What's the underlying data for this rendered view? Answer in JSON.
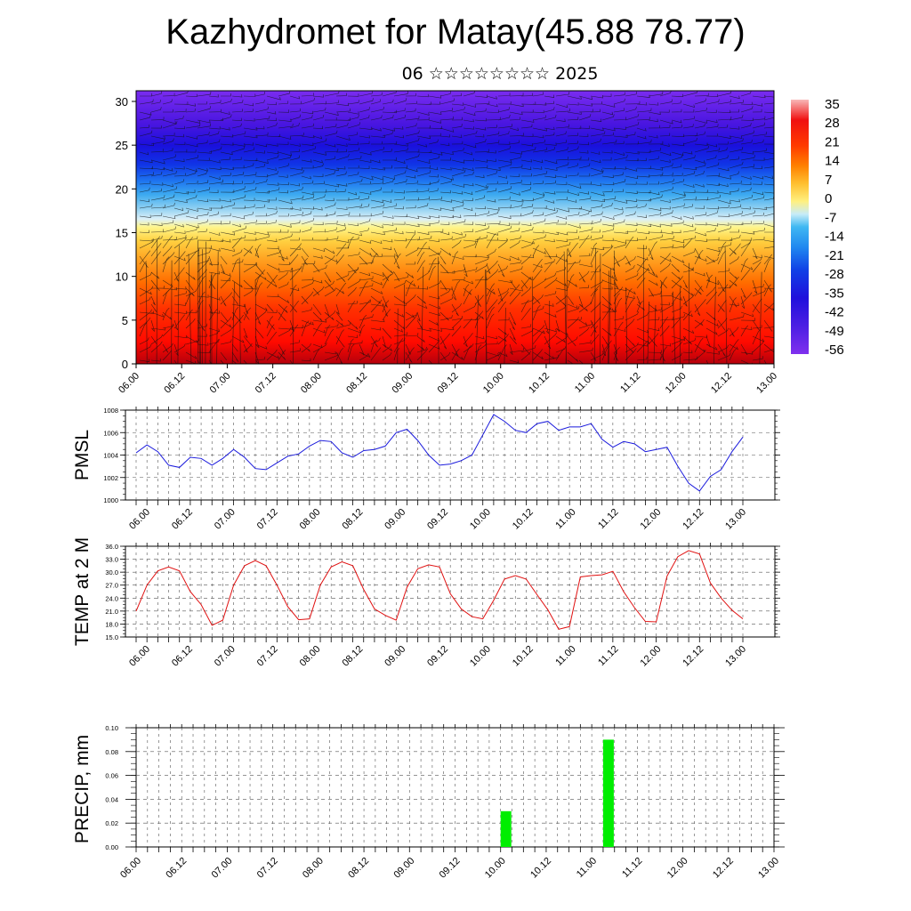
{
  "title": "Kazhydromet for Matay(45.88 78.77)",
  "subtitle": "06 ☆☆☆☆☆☆☆☆ 2025",
  "colors": {
    "pmsl_line": "#1a1adc",
    "temp_line": "#e01010",
    "precip_bar": "#00ee00",
    "grid": "#555555"
  },
  "chart_data": [
    {
      "type": "heatmap",
      "name": "cross-section",
      "ylabel": "",
      "ylim": [
        0,
        30
      ],
      "yticks": [
        "0",
        "5",
        "10",
        "15",
        "20",
        "25",
        "30"
      ],
      "xticks": [
        "06.00",
        "06.12",
        "07.00",
        "07.12",
        "08.00",
        "08.12",
        "09.00",
        "09.12",
        "10.00",
        "10.12",
        "11.00",
        "11.12",
        "12.00",
        "12.12",
        "13.00"
      ],
      "colorbar_labels": [
        "35",
        "28",
        "21",
        "14",
        "7",
        "0",
        "-7",
        "-14",
        "-21",
        "-28",
        "-35",
        "-42",
        "-49",
        "-56"
      ],
      "overlay": "wind barbs",
      "grid": false
    },
    {
      "type": "line",
      "name": "pmsl",
      "ylabel": "PMSL",
      "ylim": [
        1000,
        1008
      ],
      "yticks": [
        "1000",
        "1002",
        "1004",
        "1006",
        "1008"
      ],
      "xticks": [
        "06.00",
        "06.12",
        "07.00",
        "07.12",
        "08.00",
        "08.12",
        "09.00",
        "09.12",
        "10.00",
        "10.12",
        "11.00",
        "11.12",
        "12.00",
        "12.12",
        "13.00"
      ],
      "values": [
        1004.2,
        1004.9,
        1004.3,
        1003.1,
        1002.9,
        1003.8,
        1003.7,
        1003.1,
        1003.7,
        1004.5,
        1003.8,
        1002.8,
        1002.7,
        1003.3,
        1003.9,
        1004.1,
        1004.8,
        1005.3,
        1005.2,
        1004.2,
        1003.8,
        1004.4,
        1004.5,
        1004.8,
        1006.0,
        1006.3,
        1005.3,
        1004.0,
        1003.1,
        1003.2,
        1003.5,
        1004.0,
        1005.8,
        1007.6,
        1007.0,
        1006.2,
        1006.0,
        1006.8,
        1007.0,
        1006.2,
        1006.5,
        1006.5,
        1006.8,
        1005.4,
        1004.7,
        1005.2,
        1005.0,
        1004.3,
        1004.5,
        1004.7,
        1003.0,
        1001.5,
        1000.8,
        1002.1,
        1002.7,
        1004.3,
        1005.6
      ],
      "grid": true
    },
    {
      "type": "line",
      "name": "temp",
      "ylabel": "TEMP at 2 M",
      "ylim": [
        15,
        36
      ],
      "yticks": [
        "15.0",
        "18.0",
        "21.0",
        "24.0",
        "27.0",
        "30.0",
        "33.0",
        "36.0"
      ],
      "xticks": [
        "06.00",
        "06.12",
        "07.00",
        "07.12",
        "08.00",
        "08.12",
        "09.00",
        "09.12",
        "10.00",
        "10.12",
        "11.00",
        "11.12",
        "12.00",
        "12.12",
        "13.00"
      ],
      "values": [
        21.0,
        27.0,
        30.3,
        31.2,
        30.3,
        25.5,
        22.5,
        17.7,
        18.9,
        27.0,
        31.5,
        32.7,
        31.5,
        27.0,
        22.0,
        19.0,
        19.2,
        27.0,
        31.2,
        32.4,
        31.5,
        26.0,
        21.5,
        20.0,
        18.9,
        26.5,
        30.8,
        31.7,
        31.2,
        25.0,
        21.5,
        19.7,
        19.2,
        23.5,
        28.4,
        29.2,
        28.4,
        24.8,
        21.3,
        16.8,
        17.4,
        28.9,
        29.2,
        29.4,
        30.2,
        25.5,
        21.8,
        18.6,
        18.5,
        29.1,
        33.6,
        35.0,
        34.2,
        27.5,
        24.0,
        21.2,
        19.2
      ],
      "grid": true
    },
    {
      "type": "bar",
      "name": "precip",
      "ylabel": "PRECIP, mm",
      "ylim": [
        0,
        0.1
      ],
      "yticks": [
        "0.00",
        "0.02",
        "0.04",
        "0.06",
        "0.08",
        "0.10"
      ],
      "xticks": [
        "06.00",
        "06.12",
        "07.00",
        "07.12",
        "08.00",
        "08.12",
        "09.00",
        "09.12",
        "10.00",
        "10.12",
        "11.00",
        "11.12",
        "12.00",
        "12.12",
        "13.00"
      ],
      "bars": [
        {
          "x": "10.00",
          "value": 0.03
        },
        {
          "x": "11.03",
          "value": 0.09
        }
      ],
      "grid": true
    }
  ]
}
